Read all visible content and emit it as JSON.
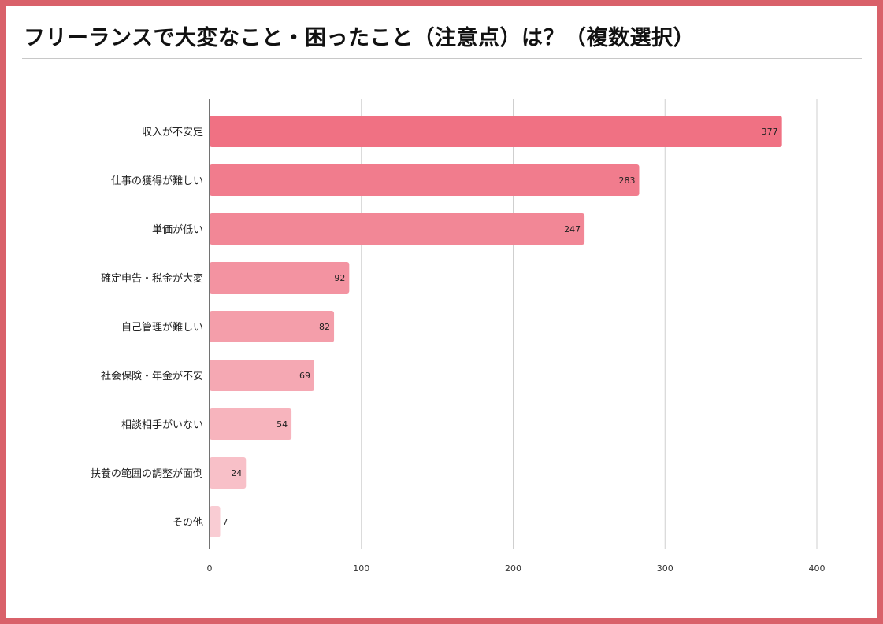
{
  "header": {
    "title": "フリーランスで大変なこと・困ったこと（注意点）は？（複数選択）"
  },
  "chart_data": {
    "type": "bar",
    "orientation": "horizontal",
    "title": "フリーランスで大変なこと・困ったこと（注意点）は？（複数選択）",
    "categories": [
      "収入が不安定",
      "仕事の獲得が難しい",
      "単価が低い",
      "確定申告・税金が大変",
      "自己管理が難しい",
      "社会保険・年金が不安",
      "相談相手がいない",
      "扶養の範囲の調整が面倒",
      "その他"
    ],
    "values": [
      377,
      283,
      247,
      92,
      82,
      69,
      54,
      24,
      7
    ],
    "xlim": [
      0,
      400
    ],
    "xticks": [
      0,
      100,
      200,
      300,
      400
    ],
    "grid": "vertical",
    "legend": "none",
    "bar_colors": [
      "#f07183",
      "#f17c8d",
      "#f28796",
      "#f393a1",
      "#f49eaa",
      "#f5a8b3",
      "#f7b4bd",
      "#f8c0c8",
      "#f9ccd3"
    ]
  }
}
